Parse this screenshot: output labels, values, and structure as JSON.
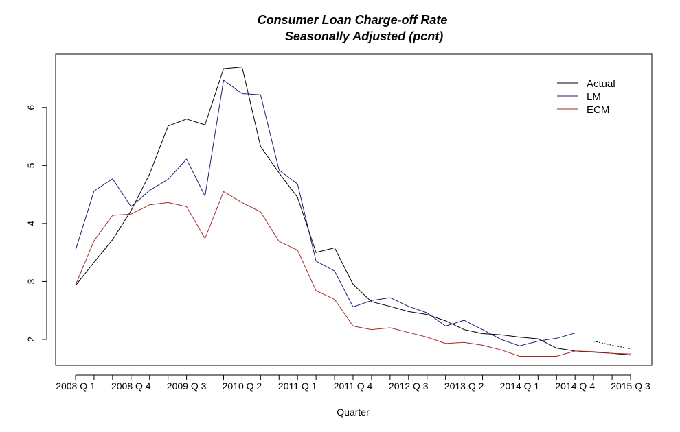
{
  "chart_data": {
    "type": "line",
    "title": "Consumer Loan Charge-off Rate",
    "subtitle": "Seasonally Adjusted (pcnt)",
    "xlabel": "Quarter",
    "ylabel": "",
    "x": [
      "2008 Q 1",
      "2008 Q 2",
      "2008 Q 3",
      "2008 Q 4",
      "2009 Q 1",
      "2009 Q 2",
      "2009 Q 3",
      "2009 Q 4",
      "2010 Q 1",
      "2010 Q 2",
      "2010 Q 3",
      "2010 Q 4",
      "2011 Q 1",
      "2011 Q 2",
      "2011 Q 3",
      "2011 Q 4",
      "2012 Q 1",
      "2012 Q 2",
      "2012 Q 3",
      "2012 Q 4",
      "2013 Q 1",
      "2013 Q 2",
      "2013 Q 3",
      "2013 Q 4",
      "2014 Q 1",
      "2014 Q 2",
      "2014 Q 3",
      "2014 Q 4",
      "2015 Q 1",
      "2015 Q 2",
      "2015 Q 3"
    ],
    "x_tick_labels": [
      "2008 Q 1",
      "2008 Q 4",
      "2009 Q 3",
      "2010 Q 2",
      "2011 Q 1",
      "2011 Q 4",
      "2012 Q 3",
      "2013 Q 2",
      "2014 Q 1",
      "2014 Q 4",
      "2015 Q 3"
    ],
    "y_ticks": [
      2,
      3,
      4,
      5,
      6
    ],
    "ylim": [
      1.55,
      6.92
    ],
    "grid": false,
    "legend_position": "top-right",
    "series": [
      {
        "name": "Actual",
        "color": "#000000",
        "values": [
          2.93,
          3.33,
          3.72,
          4.22,
          4.85,
          5.68,
          5.8,
          5.7,
          6.67,
          6.7,
          5.33,
          4.87,
          4.45,
          3.5,
          3.58,
          2.95,
          2.65,
          2.57,
          2.48,
          2.43,
          2.32,
          2.17,
          2.1,
          2.08,
          2.04,
          2.01,
          1.85,
          1.8,
          1.78,
          1.76,
          1.73
        ]
      },
      {
        "name": "LM",
        "color": "#1c1c7c",
        "values": [
          3.54,
          4.56,
          4.77,
          4.29,
          4.57,
          4.76,
          5.11,
          4.47,
          6.47,
          6.24,
          6.22,
          4.92,
          4.68,
          3.35,
          3.18,
          2.56,
          2.67,
          2.72,
          2.57,
          2.46,
          2.23,
          2.33,
          2.17,
          2.0,
          1.89,
          1.97,
          2.02,
          2.11,
          null,
          null,
          null
        ]
      },
      {
        "name": "ECM",
        "color": "#a52a2a",
        "values": [
          2.94,
          3.7,
          4.14,
          4.16,
          4.32,
          4.36,
          4.29,
          3.74,
          4.55,
          4.36,
          4.2,
          3.69,
          3.54,
          2.84,
          2.69,
          2.23,
          2.17,
          2.2,
          2.12,
          2.04,
          1.93,
          1.95,
          1.9,
          1.82,
          1.71,
          1.71,
          1.71,
          1.8,
          1.79,
          1.76,
          1.75
        ]
      },
      {
        "name": "",
        "color": "#000000",
        "dotted": true,
        "values": [
          null,
          null,
          null,
          null,
          null,
          null,
          null,
          null,
          null,
          null,
          null,
          null,
          null,
          null,
          null,
          null,
          null,
          null,
          null,
          null,
          null,
          null,
          null,
          null,
          null,
          null,
          null,
          null,
          1.97,
          1.9,
          1.84
        ]
      }
    ]
  }
}
